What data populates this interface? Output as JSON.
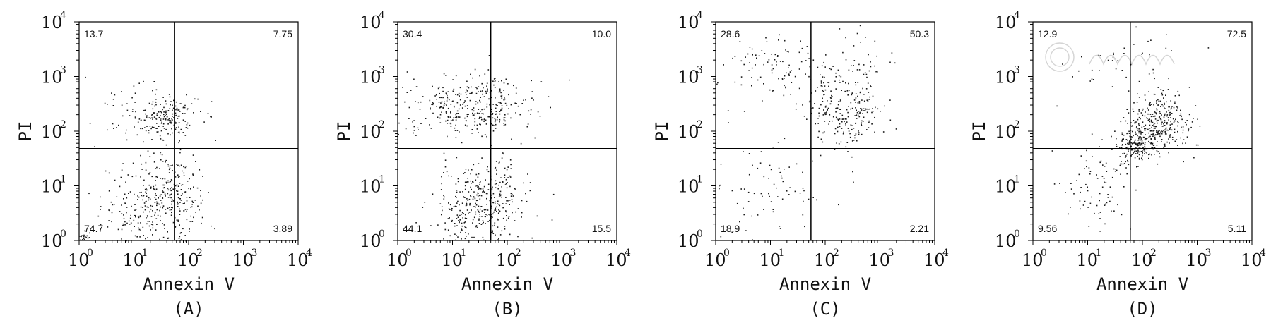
{
  "figure": {
    "x_axis_label": "Annexin V",
    "y_axis_label": "PI",
    "tick_base": "10",
    "tick_exponents": [
      "0",
      "1",
      "2",
      "3",
      "4"
    ]
  },
  "chart_data": [
    {
      "type": "scatter",
      "panel_label": "(A)",
      "xlabel": "Annexin V",
      "ylabel": "PI",
      "x_scale": "log",
      "y_scale": "log",
      "xlim": [
        1,
        10000
      ],
      "ylim": [
        1,
        10000
      ],
      "gate": {
        "x": 55,
        "y": 48
      },
      "quadrants": {
        "upper_left": "13.7",
        "upper_right": "7.75",
        "lower_left": "74.7",
        "lower_right": "3.89"
      },
      "clusters": [
        {
          "cx": 20,
          "cy": 4,
          "sx": 0.45,
          "sy": 0.45,
          "n": 280
        },
        {
          "cx": 55,
          "cy": 8,
          "sx": 0.22,
          "sy": 0.35,
          "n": 130
        },
        {
          "cx": 1.2,
          "cy": 1.1,
          "sx": 0.08,
          "sy": 0.06,
          "n": 25
        },
        {
          "cx": 35,
          "cy": 200,
          "sx": 0.32,
          "sy": 0.22,
          "n": 190
        },
        {
          "cx": 8,
          "cy": 250,
          "sx": 0.45,
          "sy": 0.4,
          "n": 30
        }
      ]
    },
    {
      "type": "scatter",
      "panel_label": "(B)",
      "xlabel": "Annexin V",
      "ylabel": "PI",
      "x_scale": "log",
      "y_scale": "log",
      "xlim": [
        1,
        10000
      ],
      "ylim": [
        1,
        10000
      ],
      "gate": {
        "x": 50,
        "y": 48
      },
      "quadrants": {
        "upper_left": "30.4",
        "upper_right": "10.0",
        "lower_left": "44.1",
        "lower_right": "15.5"
      },
      "clusters": [
        {
          "cx": 20,
          "cy": 300,
          "sx": 0.6,
          "sy": 0.28,
          "n": 360
        },
        {
          "cx": 25,
          "cy": 4,
          "sx": 0.38,
          "sy": 0.4,
          "n": 300
        },
        {
          "cx": 70,
          "cy": 6,
          "sx": 0.25,
          "sy": 0.4,
          "n": 110
        }
      ]
    },
    {
      "type": "scatter",
      "panel_label": "(C)",
      "xlabel": "Annexin V",
      "ylabel": "PI",
      "x_scale": "log",
      "y_scale": "log",
      "xlim": [
        1,
        10000
      ],
      "ylim": [
        1,
        10000
      ],
      "gate": {
        "x": 55,
        "y": 48
      },
      "quadrants": {
        "upper_left": "28.6",
        "upper_right": "50.3",
        "lower_left": "18.9",
        "lower_right": "2.21"
      },
      "clusters": [
        {
          "cx": 250,
          "cy": 250,
          "sx": 0.35,
          "sy": 0.35,
          "n": 240
        },
        {
          "cx": 15,
          "cy": 1500,
          "sx": 0.55,
          "sy": 0.3,
          "n": 110
        },
        {
          "cx": 8,
          "cy": 10,
          "sx": 0.55,
          "sy": 0.55,
          "n": 90
        },
        {
          "cx": 500,
          "cy": 2500,
          "sx": 0.35,
          "sy": 0.25,
          "n": 30
        }
      ]
    },
    {
      "type": "scatter",
      "panel_label": "(D)",
      "xlabel": "Annexin V",
      "ylabel": "PI",
      "x_scale": "log",
      "y_scale": "log",
      "xlim": [
        1,
        10000
      ],
      "ylim": [
        1,
        10000
      ],
      "gate": {
        "x": 60,
        "y": 48
      },
      "quadrants": {
        "upper_left": "12.9",
        "upper_right": "72.5",
        "lower_left": "9.56",
        "lower_right": "5.11"
      },
      "clusters": [
        {
          "cx": 200,
          "cy": 150,
          "sx": 0.3,
          "sy": 0.3,
          "n": 320
        },
        {
          "cx": 70,
          "cy": 55,
          "sx": 0.18,
          "sy": 0.18,
          "n": 180
        },
        {
          "cx": 15,
          "cy": 12,
          "sx": 0.35,
          "sy": 0.4,
          "n": 90
        },
        {
          "cx": 40,
          "cy": 1800,
          "sx": 0.6,
          "sy": 0.25,
          "n": 45
        }
      ]
    }
  ]
}
